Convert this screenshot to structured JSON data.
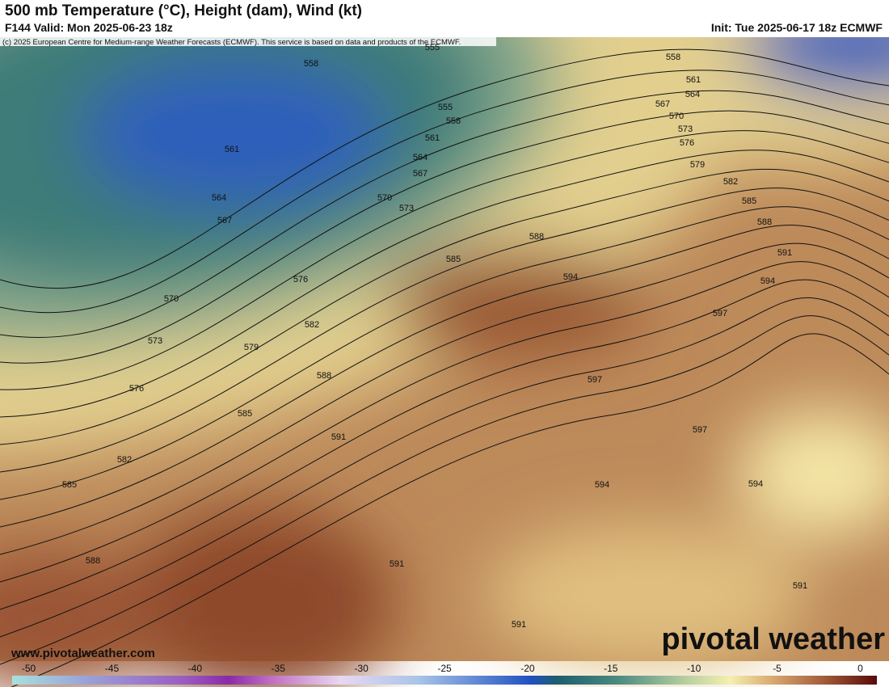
{
  "header": {
    "title": "500 mb Temperature (°C), Height (dam), Wind (kt)",
    "valid": "F144 Valid: Mon 2025-06-23 18z",
    "init": "Init: Tue 2025-06-17 18z ECMWF"
  },
  "map": {
    "credit": "(c) 2025 European Centre for Medium-range Weather Forecasts (ECMWF). This service is based on data and products of the ECMWF.",
    "contour_labels": [
      555,
      558,
      558,
      561,
      564,
      567,
      570,
      573,
      576,
      579,
      582,
      585,
      588,
      591,
      594,
      597,
      561,
      564,
      567,
      570,
      573,
      555,
      558,
      561,
      564,
      567,
      570,
      573,
      576,
      579,
      582,
      585,
      588,
      576,
      585,
      588,
      594,
      597,
      597,
      594,
      594,
      591,
      582,
      585,
      588,
      591,
      591,
      591
    ],
    "website": "www.pivotalweather.com",
    "logo": "pivotal weather"
  },
  "colorbar": {
    "lim": [
      -51,
      1
    ],
    "ticks": [
      -50,
      -45,
      -40,
      -35,
      -30,
      -25,
      -20,
      -15,
      -10,
      -5,
      0
    ]
  }
}
